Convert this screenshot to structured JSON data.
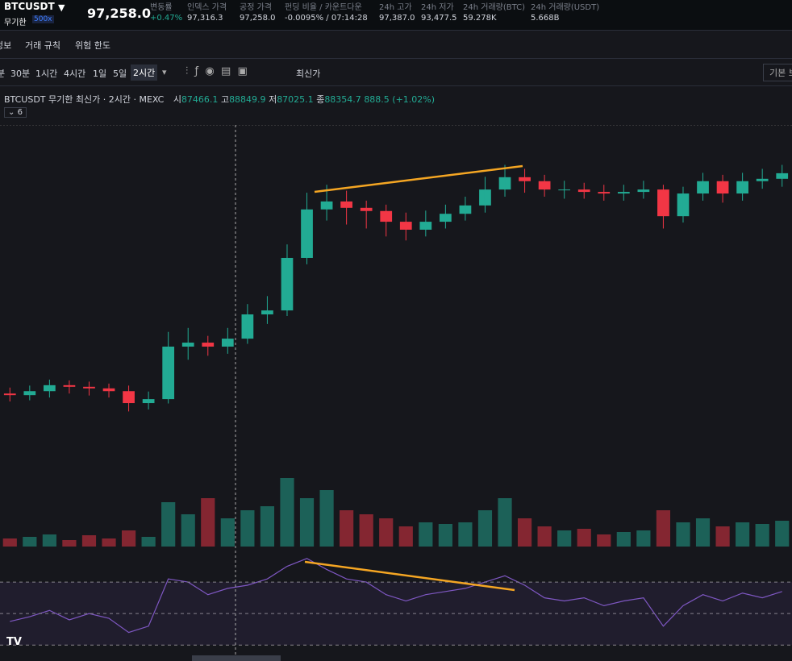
{
  "header": {
    "symbol": "BTCUSDT",
    "contract": "무기한",
    "leverage": "500x",
    "price": "97,258.0",
    "stats": [
      {
        "label": "변동률",
        "value": "+0.47%"
      },
      {
        "label": "인덱스 가격",
        "value": "97,316.3"
      },
      {
        "label": "공정 가격",
        "value": "97,258.0"
      },
      {
        "label": "펀딩 비율 / 카운트다운",
        "value": "-0.0095% / 07:14:28"
      },
      {
        "label": "24h 고가",
        "value": "97,387.0"
      },
      {
        "label": "24h 저가",
        "value": "93,477.5"
      },
      {
        "label": "24h 거래량(BTC)",
        "value": "59.278K"
      },
      {
        "label": "24h 거래량(USDT)",
        "value": "5.668B"
      }
    ]
  },
  "tabs": [
    "정보",
    "거래 규칙",
    "위험 한도"
  ],
  "toolbar": {
    "intervals": [
      "분",
      "30분",
      "1시간",
      "4시간",
      "1일",
      "5일",
      "2시간"
    ],
    "price_type": "최신가",
    "right_button": "기본 보"
  },
  "legend": {
    "title": "BTCUSDT 무기한 최신가 · 2시간 · MEXC",
    "o_label": "시",
    "o": "87466.1",
    "h_label": "고",
    "h": "88849.9",
    "l_label": "저",
    "l": "87025.1",
    "c_label": "종",
    "c": "88354.7",
    "change": "888.5 (+1.02%)",
    "indicators": "6"
  },
  "chart_data": {
    "type": "candlestick",
    "up_color": "#22ab94",
    "down_color": "#f23645",
    "ylim": [
      92000,
      99500
    ],
    "open": [
      93050,
      93010,
      93110,
      93260,
      93220,
      93180,
      93110,
      92810,
      92910,
      94230,
      94330,
      94230,
      94430,
      95040,
      95140,
      96460,
      97680,
      97880,
      97720,
      97640,
      97370,
      97170,
      97370,
      97570,
      97780,
      98180,
      98490,
      98390,
      98180,
      98180,
      98120,
      98080,
      98120,
      98180,
      97510,
      98080,
      98390,
      98080,
      98390,
      98450
    ],
    "high": [
      93200,
      93250,
      93400,
      93380,
      93350,
      93300,
      93250,
      93100,
      94600,
      94700,
      94500,
      94700,
      95300,
      95500,
      96800,
      98100,
      98300,
      98150,
      97900,
      97800,
      97600,
      97650,
      97800,
      98000,
      98500,
      98800,
      98700,
      98550,
      98400,
      98350,
      98300,
      98300,
      98400,
      98300,
      98250,
      98600,
      98550,
      98600,
      98700,
      98800
    ],
    "low": [
      92850,
      92880,
      92950,
      93050,
      93000,
      92950,
      92600,
      92650,
      92800,
      93900,
      94000,
      94050,
      94300,
      94800,
      95000,
      96300,
      97400,
      97300,
      97200,
      97000,
      96900,
      97000,
      97200,
      97400,
      97600,
      98000,
      98100,
      98000,
      97950,
      97950,
      97900,
      97900,
      97950,
      97200,
      97350,
      97900,
      97850,
      97900,
      98200,
      98250
    ],
    "close": [
      93010,
      93110,
      93260,
      93220,
      93180,
      93110,
      92810,
      92910,
      94230,
      94330,
      94230,
      94430,
      95040,
      95140,
      96460,
      97680,
      97880,
      97720,
      97640,
      97370,
      97170,
      97370,
      97570,
      97780,
      98180,
      98490,
      98390,
      98180,
      98180,
      98120,
      98080,
      98120,
      98180,
      97510,
      98080,
      98390,
      98080,
      98390,
      98450,
      98590
    ],
    "volume": {
      "ylim": [
        0,
        100
      ],
      "values": [
        10,
        12,
        15,
        8,
        14,
        10,
        20,
        12,
        55,
        40,
        60,
        35,
        45,
        50,
        85,
        60,
        70,
        45,
        40,
        35,
        25,
        30,
        28,
        30,
        45,
        60,
        35,
        25,
        20,
        22,
        15,
        18,
        20,
        45,
        30,
        35,
        25,
        30,
        28,
        32
      ]
    },
    "rsi": {
      "color": "#7e57c2",
      "ylim": [
        25,
        90
      ],
      "levels": [
        30,
        50,
        70
      ],
      "values": [
        45,
        48,
        52,
        46,
        50,
        47,
        38,
        42,
        72,
        70,
        62,
        66,
        68,
        72,
        80,
        85,
        78,
        72,
        70,
        62,
        58,
        62,
        64,
        66,
        70,
        74,
        68,
        60,
        58,
        60,
        55,
        58,
        60,
        42,
        55,
        62,
        58,
        63,
        60,
        64
      ]
    }
  }
}
